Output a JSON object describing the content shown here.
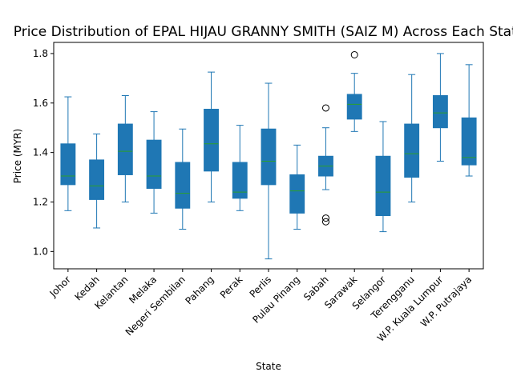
{
  "chart_data": {
    "type": "box",
    "title": "Price Distribution of EPAL HIJAU GRANNY SMITH (SAIZ M) Across Each State",
    "xlabel": "State",
    "ylabel": "Price (MYR)",
    "ylim": [
      0.93,
      1.845
    ],
    "yticks": [
      1.0,
      1.2,
      1.4,
      1.6,
      1.8
    ],
    "ytick_labels": [
      "1.0",
      "1.2",
      "1.4",
      "1.6",
      "1.8"
    ],
    "categories": [
      "Johor",
      "Kedah",
      "Kelantan",
      "Melaka",
      "Negeri Sembilan",
      "Pahang",
      "Perak",
      "Perlis",
      "Pulau Pinang",
      "Sabah",
      "Sarawak",
      "Selangor",
      "Terengganu",
      "W.P. Kuala Lumpur",
      "W.P. Putrajaya"
    ],
    "boxes": [
      {
        "min": 1.165,
        "q1": 1.27,
        "median": 1.305,
        "q3": 1.435,
        "max": 1.625,
        "outliers": []
      },
      {
        "min": 1.095,
        "q1": 1.21,
        "median": 1.265,
        "q3": 1.37,
        "max": 1.475,
        "outliers": []
      },
      {
        "min": 1.2,
        "q1": 1.31,
        "median": 1.405,
        "q3": 1.515,
        "max": 1.63,
        "outliers": []
      },
      {
        "min": 1.155,
        "q1": 1.255,
        "median": 1.305,
        "q3": 1.45,
        "max": 1.565,
        "outliers": []
      },
      {
        "min": 1.09,
        "q1": 1.175,
        "median": 1.235,
        "q3": 1.36,
        "max": 1.495,
        "outliers": []
      },
      {
        "min": 1.2,
        "q1": 1.325,
        "median": 1.435,
        "q3": 1.575,
        "max": 1.725,
        "outliers": []
      },
      {
        "min": 1.165,
        "q1": 1.215,
        "median": 1.24,
        "q3": 1.36,
        "max": 1.51,
        "outliers": []
      },
      {
        "min": 0.97,
        "q1": 1.27,
        "median": 1.365,
        "q3": 1.495,
        "max": 1.68,
        "outliers": []
      },
      {
        "min": 1.09,
        "q1": 1.155,
        "median": 1.245,
        "q3": 1.31,
        "max": 1.43,
        "outliers": []
      },
      {
        "min": 1.25,
        "q1": 1.305,
        "median": 1.345,
        "q3": 1.385,
        "max": 1.5,
        "outliers": [
          1.58,
          1.135,
          1.12
        ]
      },
      {
        "min": 1.485,
        "q1": 1.535,
        "median": 1.595,
        "q3": 1.635,
        "max": 1.72,
        "outliers": [
          1.795
        ]
      },
      {
        "min": 1.08,
        "q1": 1.145,
        "median": 1.24,
        "q3": 1.385,
        "max": 1.525,
        "outliers": []
      },
      {
        "min": 1.2,
        "q1": 1.3,
        "median": 1.395,
        "q3": 1.515,
        "max": 1.715,
        "outliers": []
      },
      {
        "min": 1.365,
        "q1": 1.5,
        "median": 1.56,
        "q3": 1.63,
        "max": 1.8,
        "outliers": []
      },
      {
        "min": 1.305,
        "q1": 1.35,
        "median": 1.38,
        "q3": 1.54,
        "max": 1.755,
        "outliers": []
      }
    ],
    "colors": {
      "box_fill": "#1f77b4",
      "box_edge": "#1f77b4",
      "whisker": "#1f77b4",
      "median": "#2ca02c",
      "outlier_edge": "#000000"
    },
    "grid": false,
    "legend": "none"
  }
}
